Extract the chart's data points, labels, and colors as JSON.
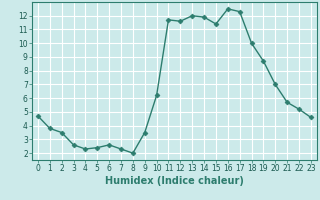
{
  "x": [
    0,
    1,
    2,
    3,
    4,
    5,
    6,
    7,
    8,
    9,
    10,
    11,
    12,
    13,
    14,
    15,
    16,
    17,
    18,
    19,
    20,
    21,
    22,
    23
  ],
  "y": [
    4.7,
    3.8,
    3.5,
    2.6,
    2.3,
    2.4,
    2.6,
    2.3,
    2.0,
    3.5,
    6.2,
    11.7,
    11.6,
    12.0,
    11.9,
    11.4,
    12.5,
    12.3,
    10.0,
    8.7,
    7.0,
    5.7,
    5.2,
    4.6
  ],
  "line_color": "#2d7d6e",
  "marker": "D",
  "markersize": 2.5,
  "linewidth": 1.0,
  "bg_color": "#cceaea",
  "grid_color": "#ffffff",
  "xlabel": "Humidex (Indice chaleur)",
  "xlim": [
    -0.5,
    23.5
  ],
  "ylim": [
    1.5,
    13.0
  ],
  "yticks": [
    2,
    3,
    4,
    5,
    6,
    7,
    8,
    9,
    10,
    11,
    12
  ],
  "xticks": [
    0,
    1,
    2,
    3,
    4,
    5,
    6,
    7,
    8,
    9,
    10,
    11,
    12,
    13,
    14,
    15,
    16,
    17,
    18,
    19,
    20,
    21,
    22,
    23
  ],
  "tick_fontsize": 5.5,
  "label_fontsize": 7,
  "label_fontweight": "bold"
}
